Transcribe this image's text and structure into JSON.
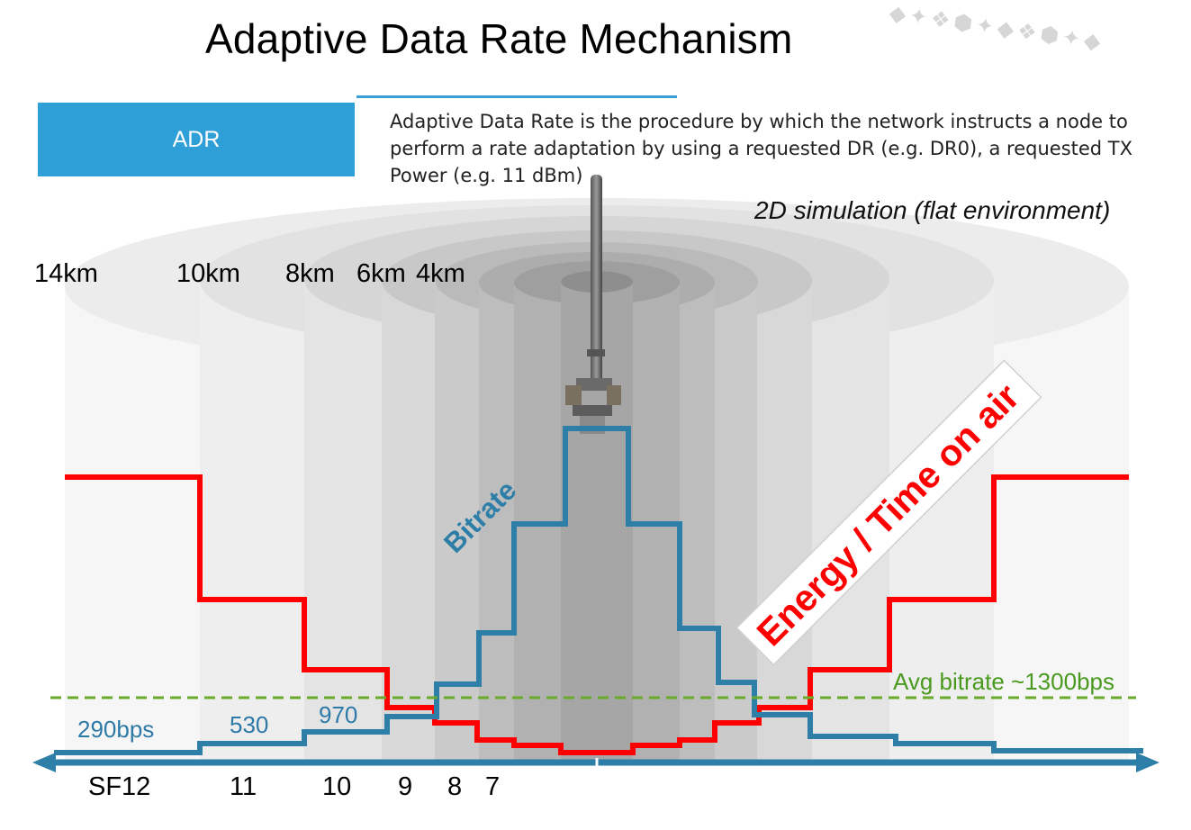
{
  "title": "Adaptive Data Rate Mechanism",
  "adr_box_label": "ADR",
  "description": "Adaptive Data Rate is the procedure by which the network instructs a node to perform a rate adaptation by using a requested DR (e.g. DR0), a requested TX Power (e.g. 11 dBm)",
  "simulation_label": "2D simulation (flat environment)",
  "distance_labels": [
    "14km",
    "10km",
    "8km",
    "6km",
    "4km"
  ],
  "sf_labels": [
    "SF12",
    "11",
    "10",
    "9",
    "8",
    "7"
  ],
  "bitrate_labels": [
    "290bps",
    "530",
    "970"
  ],
  "bitrate_curve_label": "Bitrate",
  "energy_curve_label": "Energy / Time on air",
  "avg_bitrate_label": "Avg bitrate ~1300bps",
  "colors": {
    "accent_blue": "#2f9fd8",
    "bitrate_line": "#2e7fa8",
    "energy_line": "#ff0000",
    "avg_line": "#6aaa2a"
  }
}
